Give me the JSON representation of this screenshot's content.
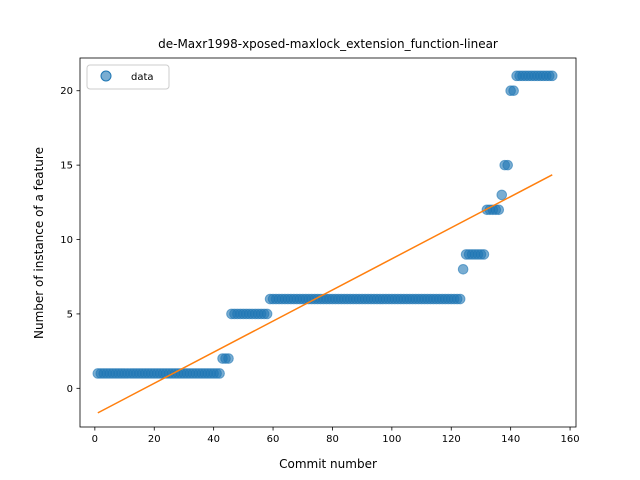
{
  "chart_data": {
    "type": "scatter",
    "title": "de-Maxr1998-xposed-maxlock_extension_function-linear",
    "xlabel": "Commit number",
    "ylabel": "Number of instance of a feature",
    "xlim": [
      -5,
      162
    ],
    "ylim": [
      -2.6,
      22.2
    ],
    "xticks": [
      0,
      20,
      40,
      60,
      80,
      100,
      120,
      140,
      160
    ],
    "yticks": [
      0,
      5,
      10,
      15,
      20
    ],
    "grid": false,
    "legend": {
      "placement": "top-left",
      "entries": [
        "data"
      ]
    },
    "colors": {
      "points": "#1f77b4",
      "fit": "#ff7f0e"
    },
    "series": [
      {
        "name": "data",
        "kind": "scatter",
        "runs": [
          {
            "x_start": 1,
            "x_end": 42,
            "y": 1
          },
          {
            "x_start": 43,
            "x_end": 45,
            "y": 2
          },
          {
            "x_start": 46,
            "x_end": 58,
            "y": 5
          },
          {
            "x_start": 59,
            "x_end": 123,
            "y": 6
          },
          {
            "x_start": 124,
            "x_end": 124,
            "y": 8
          },
          {
            "x_start": 125,
            "x_end": 131,
            "y": 9
          },
          {
            "x_start": 132,
            "x_end": 136,
            "y": 12
          },
          {
            "x_start": 137,
            "x_end": 137,
            "y": 13
          },
          {
            "x_start": 138,
            "x_end": 139,
            "y": 15
          },
          {
            "x_start": 140,
            "x_end": 141,
            "y": 20
          },
          {
            "x_start": 142,
            "x_end": 154,
            "y": 21
          }
        ]
      },
      {
        "kind": "line",
        "x": [
          1,
          154
        ],
        "y": [
          -1.65,
          14.35
        ]
      }
    ]
  }
}
